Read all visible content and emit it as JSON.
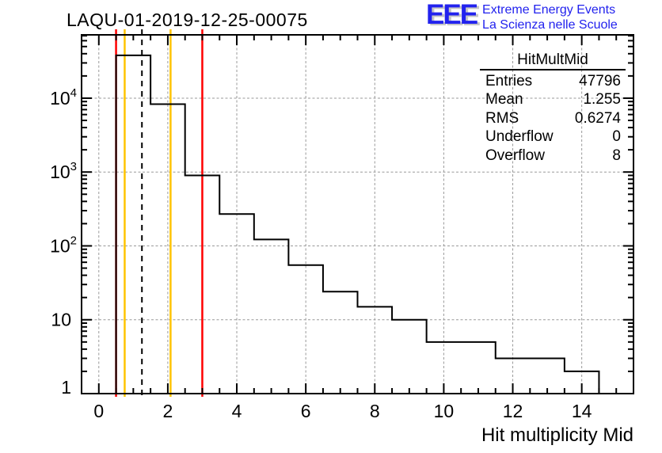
{
  "header": {
    "title": "LAQU-01-2019-12-25-00075",
    "logo": {
      "letters": "EEE",
      "line1": "Extreme Energy Events",
      "line2": "La Scienza nelle Scuole",
      "text_color": "#2222ee",
      "shadow_color": "#c6c6c6"
    }
  },
  "stats_box": {
    "title": "HitMultMid",
    "rows": [
      {
        "label": "Entries",
        "value": "47796"
      },
      {
        "label": "Mean",
        "value": "1.255"
      },
      {
        "label": "RMS",
        "value": "0.6274"
      },
      {
        "label": "Underflow",
        "value": "0"
      },
      {
        "label": "Overflow",
        "value": "8"
      }
    ]
  },
  "chart_data": {
    "type": "bar",
    "histogram": true,
    "title": "LAQU-01-2019-12-25-00075",
    "xlabel": "Hit multiplicity Mid",
    "ylabel": "",
    "y_scale": "log",
    "x_range": [
      -0.5,
      15.5
    ],
    "y_range": [
      1,
      72000
    ],
    "bin_width": 1,
    "bin_centers": [
      0,
      1,
      2,
      3,
      4,
      5,
      6,
      7,
      8,
      9,
      10,
      11,
      12,
      13,
      14,
      15
    ],
    "counts": [
      0,
      38000,
      8300,
      900,
      270,
      122,
      55,
      24,
      15,
      10,
      5,
      5,
      3,
      3,
      2,
      0
    ],
    "x_major_ticks": [
      0,
      2,
      4,
      6,
      8,
      10,
      12,
      14
    ],
    "x_minor_step": 0.5,
    "y_decades": [
      1,
      10,
      100,
      1000,
      10000
    ],
    "grid": true,
    "grid_color": "#999999",
    "hist_color": "#000000",
    "vertical_lines": [
      {
        "x": 0.5,
        "color": "#ff0000",
        "style": "solid",
        "name": "red-threshold-low"
      },
      {
        "x": 0.75,
        "color": "#ffc400",
        "style": "solid",
        "name": "yellow-threshold-low"
      },
      {
        "x": 1.25,
        "color": "#000000",
        "style": "dashed",
        "name": "mean-line"
      },
      {
        "x": 2.08,
        "color": "#ffc400",
        "style": "solid",
        "name": "yellow-threshold-high"
      },
      {
        "x": 3.0,
        "color": "#ff0000",
        "style": "solid",
        "name": "red-threshold-high"
      }
    ]
  }
}
